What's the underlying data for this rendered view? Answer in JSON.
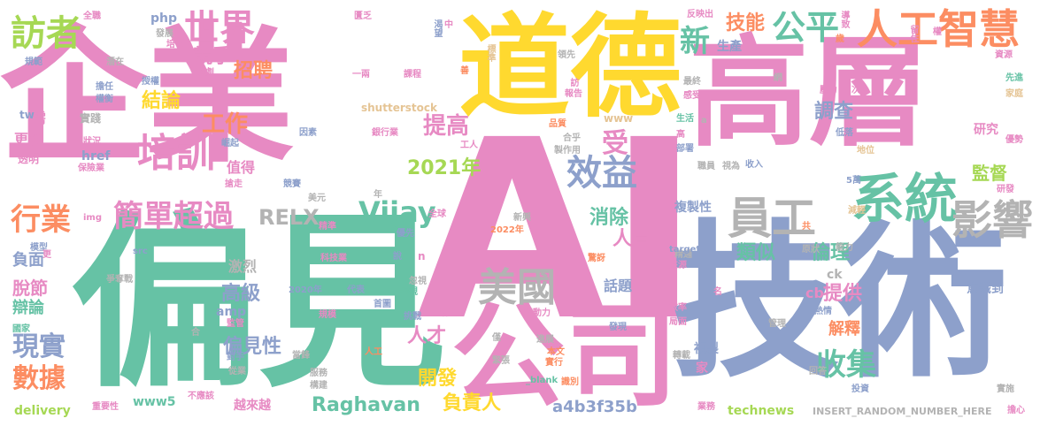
{
  "palette": {
    "pink": "#e78ac3",
    "green": "#66c2a5",
    "orange": "#fc8d62",
    "blue": "#8da0cb",
    "lime": "#a6d854",
    "yellow": "#ffd92f",
    "tan": "#e5c494",
    "gray": "#b3b3b3"
  },
  "words": [
    {
      "text": "企業",
      "color": "pink"
    },
    {
      "text": "偏見",
      "color": "green"
    },
    {
      "text": "AI",
      "color": "pink"
    },
    {
      "text": "道德",
      "color": "yellow"
    },
    {
      "text": "高層",
      "color": "pink"
    },
    {
      "text": "技術",
      "color": "blue"
    },
    {
      "text": "公司",
      "color": "pink"
    },
    {
      "text": "人工智慧",
      "color": "orange"
    },
    {
      "text": "系統",
      "color": "green"
    },
    {
      "text": "員工",
      "color": "gray"
    },
    {
      "text": "影響",
      "color": "gray"
    },
    {
      "text": "美國",
      "color": "gray"
    },
    {
      "text": "培訓",
      "color": "pink"
    },
    {
      "text": "效益",
      "color": "blue"
    },
    {
      "text": "世界",
      "color": "pink"
    },
    {
      "text": "公平",
      "color": "green"
    },
    {
      "text": "訪者",
      "color": "lime"
    },
    {
      "text": "Vijay",
      "color": "green"
    },
    {
      "text": "RELX",
      "color": "gray"
    },
    {
      "text": "Raghavan",
      "color": "green"
    },
    {
      "text": "簡單",
      "color": "pink"
    },
    {
      "text": "超過",
      "color": "pink"
    },
    {
      "text": "行業",
      "color": "orange"
    },
    {
      "text": "現實",
      "color": "blue"
    },
    {
      "text": "數據",
      "color": "orange"
    },
    {
      "text": "收集",
      "color": "green"
    },
    {
      "text": "提高",
      "color": "pink"
    },
    {
      "text": "工作",
      "color": "orange"
    },
    {
      "text": "2021年",
      "color": "lime"
    },
    {
      "text": "新",
      "color": "green"
    },
    {
      "text": "受",
      "color": "pink"
    },
    {
      "text": "技能",
      "color": "orange"
    },
    {
      "text": "競爭",
      "color": "pink"
    },
    {
      "text": "招聘",
      "color": "orange"
    },
    {
      "text": "結論",
      "color": "yellow"
    },
    {
      "text": "調查",
      "color": "blue"
    },
    {
      "text": "消除",
      "color": "green"
    },
    {
      "text": "人員",
      "color": "pink"
    },
    {
      "text": "類似",
      "color": "green"
    },
    {
      "text": "倫理",
      "color": "green"
    },
    {
      "text": "提供",
      "color": "pink"
    },
    {
      "text": "偏見性",
      "color": "blue"
    },
    {
      "text": "高級",
      "color": "blue"
    },
    {
      "text": "開發",
      "color": "yellow"
    },
    {
      "text": "人才",
      "color": "pink"
    },
    {
      "text": "負責人",
      "color": "yellow"
    },
    {
      "text": "a4b3f35b",
      "color": "blue"
    },
    {
      "text": "監督",
      "color": "lime"
    },
    {
      "text": "研究",
      "color": "pink"
    },
    {
      "text": "生產",
      "color": "blue"
    },
    {
      "text": "複製性",
      "color": "blue"
    },
    {
      "text": "複製",
      "color": "blue"
    },
    {
      "text": "解釋",
      "color": "orange"
    },
    {
      "text": "負面",
      "color": "blue"
    },
    {
      "text": "脫節",
      "color": "pink"
    },
    {
      "text": "辯論",
      "color": "green"
    },
    {
      "text": "更多",
      "color": "pink"
    },
    {
      "text": "需",
      "color": "pink"
    },
    {
      "text": "值得",
      "color": "pink"
    },
    {
      "text": "激烈",
      "color": "gray"
    },
    {
      "text": "話題",
      "color": "blue"
    },
    {
      "text": "越來越",
      "color": "pink"
    },
    {
      "text": "www5",
      "color": "green"
    },
    {
      "text": "delivery",
      "color": "lime"
    },
    {
      "text": "technews",
      "color": "lime"
    },
    {
      "text": "INSERT_RANDOM_NUMBER_HERE",
      "color": "gray"
    },
    {
      "text": "意識到",
      "color": "blue"
    },
    {
      "text": "cb",
      "color": "pink"
    },
    {
      "text": "ck",
      "color": "gray"
    },
    {
      "text": "href",
      "color": "blue"
    },
    {
      "text": "php",
      "color": "blue"
    },
    {
      "text": "amp",
      "color": "blue"
    },
    {
      "text": "實踐",
      "color": "gray"
    },
    {
      "text": "shutterstock",
      "color": "tan"
    },
    {
      "text": "www",
      "color": "tan"
    },
    {
      "text": "全職",
      "color": "pink"
    },
    {
      "text": "匱乏",
      "color": "pink"
    },
    {
      "text": "反映出",
      "color": "pink"
    },
    {
      "text": "導致",
      "color": "pink"
    },
    {
      "text": "歲",
      "color": "orange"
    },
    {
      "text": "留住",
      "color": "pink"
    },
    {
      "text": "權",
      "color": "pink"
    },
    {
      "text": "資源",
      "color": "pink"
    },
    {
      "text": "先進",
      "color": "green"
    },
    {
      "text": "家庭",
      "color": "tan"
    },
    {
      "text": "優勢",
      "color": "pink"
    },
    {
      "text": "地位",
      "color": "tan"
    },
    {
      "text": "研發",
      "color": "pink"
    },
    {
      "text": "實施",
      "color": "gray"
    },
    {
      "text": "擔心",
      "color": "pink"
    },
    {
      "text": "投資",
      "color": "blue"
    },
    {
      "text": "回答",
      "color": "gray"
    },
    {
      "text": "業務",
      "color": "pink"
    },
    {
      "text": "熱情",
      "color": "blue"
    },
    {
      "text": "管理",
      "color": "gray"
    },
    {
      "text": "能力",
      "color": "gray"
    },
    {
      "text": "原狀",
      "color": "gray"
    },
    {
      "text": "精通",
      "color": "gray"
    },
    {
      "text": "減輕",
      "color": "tan"
    },
    {
      "text": "5萬",
      "color": "blue"
    },
    {
      "text": "低落",
      "color": "blue"
    },
    {
      "text": "壓力",
      "color": "pink"
    },
    {
      "text": "次",
      "color": "pink"
    },
    {
      "text": "網",
      "color": "gray"
    },
    {
      "text": "最終",
      "color": "gray"
    },
    {
      "text": "感受",
      "color": "pink"
    },
    {
      "text": "生活",
      "color": "green"
    },
    {
      "text": "高",
      "color": "pink"
    },
    {
      "text": "部署",
      "color": "blue"
    },
    {
      "text": "職員",
      "color": "gray"
    },
    {
      "text": "視為",
      "color": "gray"
    },
    {
      "text": "收入",
      "color": "blue"
    },
    {
      "text": "共",
      "color": "orange"
    },
    {
      "text": "target",
      "color": "blue"
    },
    {
      "text": "來源",
      "color": "pink"
    },
    {
      "text": "名",
      "color": "pink"
    },
    {
      "text": "效率",
      "color": "pink"
    },
    {
      "text": "局面",
      "color": "pink"
    },
    {
      "text": "轉載",
      "color": "gray"
    },
    {
      "text": "家",
      "color": "pink"
    },
    {
      "text": "實行",
      "color": "orange"
    },
    {
      "text": "本文",
      "color": "orange"
    },
    {
      "text": "識別",
      "color": "orange"
    },
    {
      "text": "進展",
      "color": "gray"
    },
    {
      "text": "勞動力",
      "color": "pink"
    },
    {
      "text": "發現",
      "color": "blue"
    },
    {
      "text": "指出",
      "color": "pink"
    },
    {
      "text": "挑戰",
      "color": "blue"
    },
    {
      "text": "僅",
      "color": "gray"
    },
    {
      "text": "緊張",
      "color": "gray"
    },
    {
      "text": "_blank",
      "color": "green"
    },
    {
      "text": "首圖",
      "color": "blue"
    },
    {
      "text": "審視",
      "color": "green"
    },
    {
      "text": "忽視",
      "color": "gray"
    },
    {
      "text": "說",
      "color": "blue"
    },
    {
      "text": "代表",
      "color": "blue"
    },
    {
      "text": "科技業",
      "color": "pink"
    },
    {
      "text": "精準",
      "color": "pink"
    },
    {
      "text": "全球",
      "color": "pink"
    },
    {
      "text": "新興",
      "color": "gray"
    },
    {
      "text": "2022年",
      "color": "orange"
    },
    {
      "text": "優先",
      "color": "blue"
    },
    {
      "text": "驚訝",
      "color": "orange"
    },
    {
      "text": "n",
      "color": "pink"
    },
    {
      "text": "2020年",
      "color": "blue"
    },
    {
      "text": "規模",
      "color": "pink"
    },
    {
      "text": "當鋒",
      "color": "gray"
    },
    {
      "text": "服務",
      "color": "gray"
    },
    {
      "text": "構建",
      "color": "gray"
    },
    {
      "text": "人工",
      "color": "orange"
    },
    {
      "text": "年",
      "color": "gray"
    },
    {
      "text": "美元",
      "color": "gray"
    },
    {
      "text": "競賽",
      "color": "blue"
    },
    {
      "text": "因素",
      "color": "blue"
    },
    {
      "text": "銀行業",
      "color": "pink"
    },
    {
      "text": "合乎",
      "color": "gray"
    },
    {
      "text": "製作用",
      "color": "gray"
    },
    {
      "text": "工人",
      "color": "pink"
    },
    {
      "text": "品質",
      "color": "orange"
    },
    {
      "text": "報告",
      "color": "pink"
    },
    {
      "text": "領先",
      "color": "gray"
    },
    {
      "text": "訪",
      "color": "pink"
    },
    {
      "text": "標準",
      "color": "tan"
    },
    {
      "text": "一兩",
      "color": "pink"
    },
    {
      "text": "課程",
      "color": "pink"
    },
    {
      "text": "善",
      "color": "orange"
    },
    {
      "text": "渴望",
      "color": "blue"
    },
    {
      "text": "中",
      "color": "pink"
    },
    {
      "text": "發展",
      "color": "gray"
    },
    {
      "text": "培養",
      "color": "pink"
    },
    {
      "text": "潛在",
      "color": "gray"
    },
    {
      "text": "加劇",
      "color": "pink"
    },
    {
      "text": "規範",
      "color": "blue"
    },
    {
      "text": "擔任",
      "color": "blue"
    },
    {
      "text": "權衡",
      "color": "blue"
    },
    {
      "text": "授權",
      "color": "blue"
    },
    {
      "text": "崛起",
      "color": "blue"
    },
    {
      "text": "搶走",
      "color": "pink"
    },
    {
      "text": "狀況",
      "color": "pink"
    },
    {
      "text": "保險業",
      "color": "pink"
    },
    {
      "text": "tw",
      "color": "blue"
    },
    {
      "text": "透明",
      "color": "pink"
    },
    {
      "text": "img",
      "color": "pink"
    },
    {
      "text": "模型",
      "color": "blue"
    },
    {
      "text": "src",
      "color": "blue"
    },
    {
      "text": "爭奪戰",
      "color": "gray"
    },
    {
      "text": "監管",
      "color": "pink"
    },
    {
      "text": "對手",
      "color": "blue"
    },
    {
      "text": "國家",
      "color": "green"
    },
    {
      "text": "從業",
      "color": "gray"
    },
    {
      "text": "重要性",
      "color": "pink"
    },
    {
      "text": "不應該",
      "color": "pink"
    },
    {
      "text": "a",
      "color": "gray"
    },
    {
      "text": "合",
      "color": "gray"
    },
    {
      "text": "更",
      "color": "pink"
    }
  ]
}
